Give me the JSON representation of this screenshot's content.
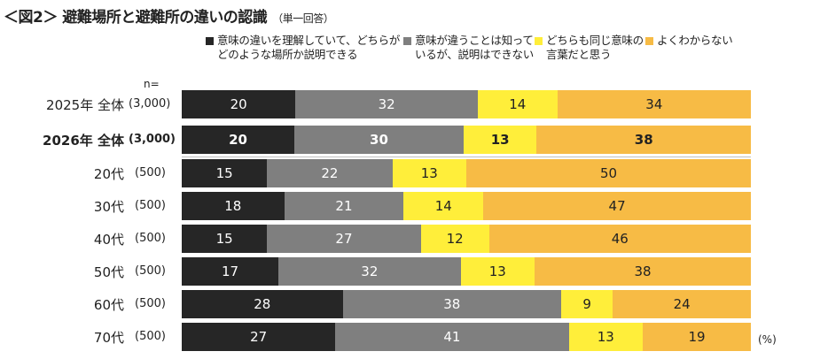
{
  "title": "＜図2＞ 避難場所と避難所の違いの認識",
  "subtitle": "（単一回答）",
  "n_label": "n=",
  "unit": "(%)",
  "colors": {
    "s1": "#262626",
    "s2": "#7f7f7f",
    "s3": "#ffee3a",
    "s4": "#f7bb45",
    "text_light": "#ffffff",
    "text_dark": "#222222"
  },
  "chart_data": {
    "type": "bar",
    "orientation": "horizontal",
    "stacked": true,
    "percent": true,
    "legend_position": "top",
    "series": [
      {
        "name": "意味の違いを理解していて、どちらがどのような場所か説明できる"
      },
      {
        "name": "意味が違うことは知っているが、説明はできない"
      },
      {
        "name": "どちらも同じ意味の言葉だと思う"
      },
      {
        "name": "よくわからない"
      }
    ],
    "rows": [
      {
        "label": "2025年 全体",
        "n": "(3,000)",
        "values": [
          20,
          32,
          14,
          34
        ],
        "bold": false
      },
      {
        "label": "2026年 全体",
        "n": "(3,000)",
        "values": [
          20,
          30,
          13,
          38
        ],
        "bold": true
      },
      {
        "label": "20代",
        "n": "(500)",
        "values": [
          15,
          22,
          13,
          50
        ],
        "bold": false
      },
      {
        "label": "30代",
        "n": "(500)",
        "values": [
          18,
          21,
          14,
          47
        ],
        "bold": false
      },
      {
        "label": "40代",
        "n": "(500)",
        "values": [
          15,
          27,
          12,
          46
        ],
        "bold": false
      },
      {
        "label": "50代",
        "n": "(500)",
        "values": [
          17,
          32,
          13,
          38
        ],
        "bold": false
      },
      {
        "label": "60代",
        "n": "(500)",
        "values": [
          28,
          38,
          9,
          24
        ],
        "bold": false
      },
      {
        "label": "70代",
        "n": "(500)",
        "values": [
          27,
          41,
          13,
          19
        ],
        "bold": false
      }
    ]
  }
}
